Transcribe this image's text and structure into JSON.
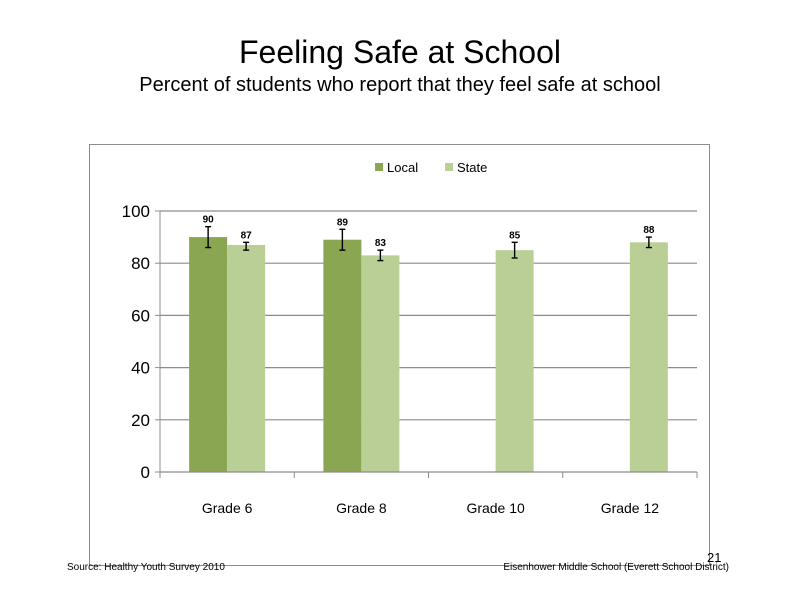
{
  "slide": {
    "title": "Feeling Safe at School",
    "subtitle": "Percent of students who report that they feel safe at school",
    "source": "Source: Healthy Youth Survey 2010",
    "school": "Eisenhower Middle School (Everett School District)",
    "page_number": "21"
  },
  "chart_data": {
    "type": "bar",
    "title": "",
    "xlabel": "",
    "ylabel": "",
    "ylim": [
      0,
      100
    ],
    "yticks": [
      0,
      20,
      40,
      60,
      80,
      100
    ],
    "grid": true,
    "legend_position": "top",
    "categories": [
      "Grade 6",
      "Grade 8",
      "Grade 10",
      "Grade 12"
    ],
    "series": [
      {
        "name": "Local",
        "color": "#8aa652",
        "values": [
          90,
          89,
          null,
          null
        ],
        "labels": [
          "90",
          "89",
          null,
          null
        ],
        "error_low": [
          86,
          85,
          null,
          null
        ],
        "error_high": [
          94,
          93,
          null,
          null
        ]
      },
      {
        "name": "State",
        "color": "#b9cf95",
        "values": [
          87,
          83,
          85,
          88
        ],
        "labels": [
          "87",
          "83",
          "85",
          "88"
        ],
        "error_low": [
          85,
          81,
          82,
          86
        ],
        "error_high": [
          88,
          85,
          88,
          90
        ]
      }
    ]
  }
}
